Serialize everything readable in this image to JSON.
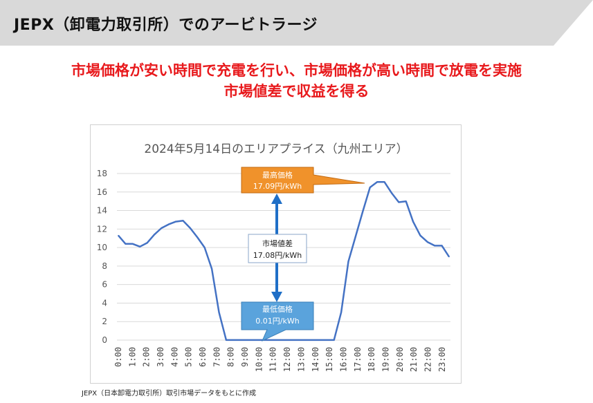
{
  "header": {
    "title": "JEPX（卸電力取引所）でのアービトラージ"
  },
  "headline": {
    "line1": "市場価格が安い時間で充電を行い、市場価格が高い時間で放電を実施",
    "line2": "市場値差で収益を得る"
  },
  "source_note": "JEPX（日本卸電力取引所）取引市場データをもとに作成",
  "colors": {
    "header_bg": "#d9d9d9",
    "headline": "#e8191c",
    "line": "#4472c4",
    "max_callout": "#f0922b",
    "min_callout": "#5aa3dc",
    "arrow": "#1f6fc7"
  },
  "chart_data": {
    "type": "line",
    "title": "2024年5月14日のエリアプライス（九州エリア）",
    "xlabel": "",
    "ylabel": "",
    "ylim": [
      0,
      18
    ],
    "yticks": [
      "0",
      "2",
      "4",
      "6",
      "8",
      "10",
      "12",
      "14",
      "16",
      "18"
    ],
    "xtick_labels": [
      "0:00",
      "1:00",
      "2:00",
      "3:00",
      "4:00",
      "5:00",
      "6:00",
      "7:00",
      "8:00",
      "9:00",
      "10:00",
      "11:00",
      "12:00",
      "13:00",
      "14:00",
      "15:00",
      "16:00",
      "17:00",
      "18:00",
      "19:00",
      "20:00",
      "21:00",
      "22:00",
      "23:00"
    ],
    "grid": true,
    "legend": "none",
    "series": [
      {
        "values": [
          11.3,
          10.4,
          10.4,
          10.1,
          10.5,
          11.4,
          12.1,
          12.5,
          12.8,
          12.9,
          12.1,
          11.1,
          10.0,
          7.7,
          3.0,
          0.01,
          0.01,
          0.01,
          0.01,
          0.01,
          0.01,
          0.01,
          0.01,
          0.01,
          0.01,
          0.01,
          0.01,
          0.01,
          0.01,
          0.01,
          0.01,
          3.0,
          8.5,
          11.2,
          13.9,
          16.5,
          17.09,
          17.09,
          15.9,
          14.9,
          15.0,
          12.8,
          11.3,
          10.6,
          10.2,
          10.2,
          9.0
        ]
      }
    ],
    "annotations": {
      "max": {
        "title": "最高価格",
        "value": "17.09円/kWh"
      },
      "min": {
        "title": "最低価格",
        "value": "0.01円/kWh"
      },
      "spread": {
        "title": "市場値差",
        "value": "17.08円/kWh"
      }
    }
  }
}
